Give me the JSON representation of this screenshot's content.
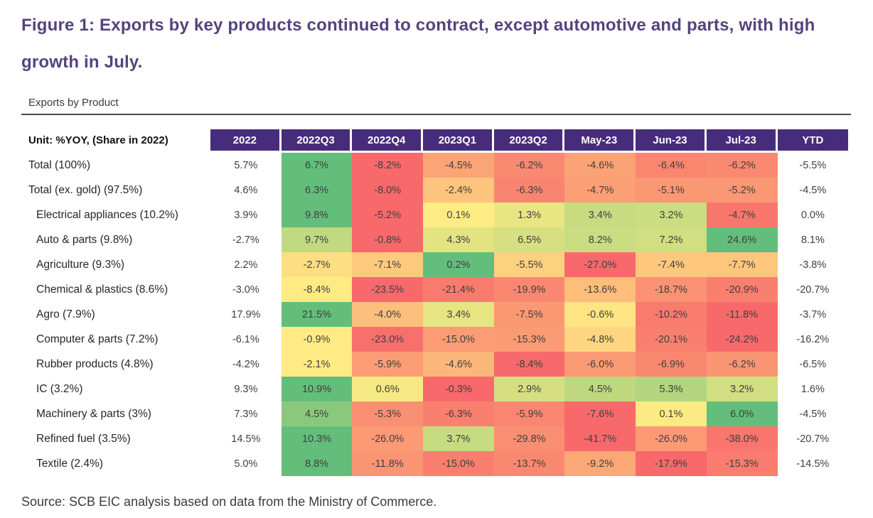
{
  "figure": {
    "title": "Figure 1: Exports by key products continued to contract, except automotive and parts, with high growth in July.",
    "subtitle": "Exports by Product",
    "source": "Source: SCB EIC analysis based on data from the Ministry of Commerce."
  },
  "colors": {
    "title_purple": "#55437E",
    "header_bg": "#472C7C",
    "header_text": "#ffffff",
    "cell_text": "#3f3f3f",
    "scale_red": "#F8696B",
    "scale_yellow": "#FFEB84",
    "scale_green": "#63BE7B"
  },
  "chart_data": {
    "type": "heatmap",
    "title": "Exports by Product",
    "unit_label": "Unit: %YOY, (Share in 2022)",
    "value_unit": "%",
    "columns": [
      "2022",
      "2022Q3",
      "2022Q4",
      "2023Q1",
      "2023Q2",
      "May-23",
      "Jun-23",
      "Jul-23",
      "YTD"
    ],
    "colored_column_indices": [
      1,
      2,
      3,
      4,
      5,
      6,
      7
    ],
    "color_scale": {
      "scope": "per-row",
      "min_color": "red",
      "midpoint_value": 0,
      "mid_color": "yellow",
      "max_color": "green",
      "uncolored_columns": [
        "2022",
        "YTD"
      ]
    },
    "rows": [
      {
        "label": "Total  (100%)",
        "indent": false,
        "values": [
          5.7,
          6.7,
          -8.2,
          -4.5,
          -6.2,
          -4.6,
          -6.4,
          -6.2,
          -5.5
        ]
      },
      {
        "label": "Total (ex. gold) (97.5%)",
        "indent": false,
        "values": [
          4.6,
          6.3,
          -8.0,
          -2.4,
          -6.3,
          -4.7,
          -5.1,
          -5.2,
          -4.5
        ]
      },
      {
        "label": "Electrical appliances  (10.2%)",
        "indent": true,
        "values": [
          3.9,
          9.8,
          -5.2,
          0.1,
          1.3,
          3.4,
          3.2,
          -4.7,
          0.0
        ]
      },
      {
        "label": "Auto & parts  (9.8%)",
        "indent": true,
        "values": [
          -2.7,
          9.7,
          -0.8,
          4.3,
          6.5,
          8.2,
          7.2,
          24.6,
          8.1
        ]
      },
      {
        "label": "Agriculture  (9.3%)",
        "indent": true,
        "values": [
          2.2,
          -2.7,
          -7.1,
          0.2,
          -5.5,
          -27.0,
          -7.4,
          -7.7,
          -3.8
        ]
      },
      {
        "label": "Chemical & plastics  (8.6%)",
        "indent": true,
        "values": [
          -3.0,
          -8.4,
          -23.5,
          -21.4,
          -19.9,
          -13.6,
          -18.7,
          -20.9,
          -20.7
        ]
      },
      {
        "label": "Agro  (7.9%)",
        "indent": true,
        "values": [
          17.9,
          21.5,
          -4.0,
          3.4,
          -7.5,
          -0.6,
          -10.2,
          -11.8,
          -3.7
        ]
      },
      {
        "label": "Computer & parts  (7.2%)",
        "indent": true,
        "values": [
          -6.1,
          -0.9,
          -23.0,
          -15.0,
          -15.3,
          -4.8,
          -20.1,
          -24.2,
          -16.2
        ]
      },
      {
        "label": "Rubber products  (4.8%)",
        "indent": true,
        "values": [
          -4.2,
          -2.1,
          -5.9,
          -4.6,
          -8.4,
          -6.0,
          -6.9,
          -6.2,
          -6.5
        ]
      },
      {
        "label": "IC  (3.2%)",
        "indent": true,
        "values": [
          9.3,
          10.9,
          0.6,
          -0.3,
          2.9,
          4.5,
          5.3,
          3.2,
          1.6
        ]
      },
      {
        "label": "Machinery & parts  (3%)",
        "indent": true,
        "values": [
          7.3,
          4.5,
          -5.3,
          -6.3,
          -5.9,
          -7.6,
          0.1,
          6.0,
          -4.5
        ]
      },
      {
        "label": "Refined fuel (3.5%)",
        "indent": true,
        "values": [
          14.5,
          10.3,
          -26.0,
          3.7,
          -29.8,
          -41.7,
          -26.0,
          -38.0,
          -20.7
        ]
      },
      {
        "label": "Textile  (2.4%)",
        "indent": true,
        "values": [
          5.0,
          8.8,
          -11.8,
          -15.0,
          -13.7,
          -9.2,
          -17.9,
          -15.3,
          -14.5
        ]
      }
    ]
  }
}
